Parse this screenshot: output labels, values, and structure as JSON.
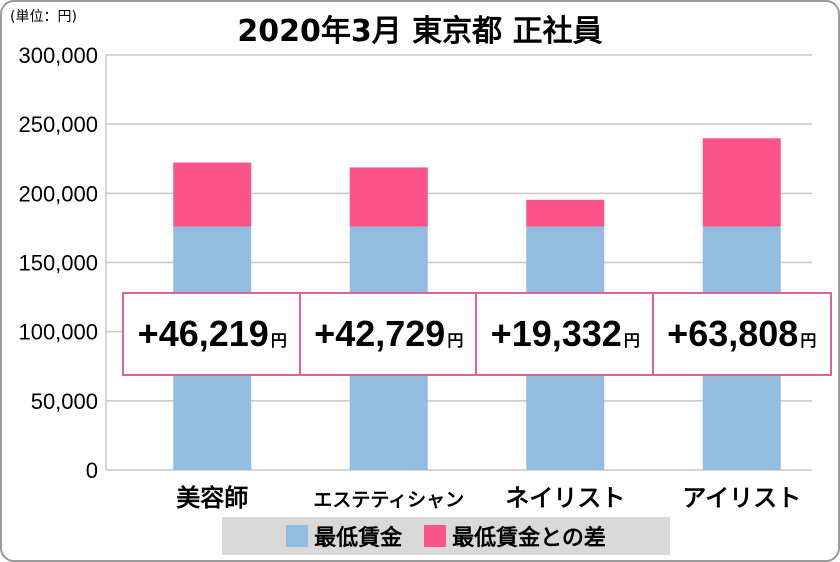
{
  "chart_data": {
    "type": "bar",
    "stacked": true,
    "title": "2020年3月 東京都 正社員",
    "unit_label": "(単位：円)",
    "categories": [
      "美容師",
      "エステティシャン",
      "ネイリスト",
      "アイリスト"
    ],
    "series": [
      {
        "name": "最低賃金",
        "values": [
          176000,
          176000,
          176000,
          176000
        ],
        "color": "#93bde0"
      },
      {
        "name": "最低賃金との差",
        "values": [
          46219,
          42729,
          19332,
          63808
        ],
        "color": "#fa548a"
      }
    ],
    "data_labels": [
      "+46,219",
      "+42,729",
      "+19,332",
      "+63,808"
    ],
    "data_label_unit": "円",
    "ylim": [
      0,
      300000
    ],
    "yticks": [
      0,
      50000,
      100000,
      150000,
      200000,
      250000,
      300000
    ],
    "ytick_labels": [
      "0",
      "50,000",
      "100,000",
      "150,000",
      "200,000",
      "250,000",
      "300,000"
    ],
    "grid": true,
    "legend_placement": "bottom"
  }
}
